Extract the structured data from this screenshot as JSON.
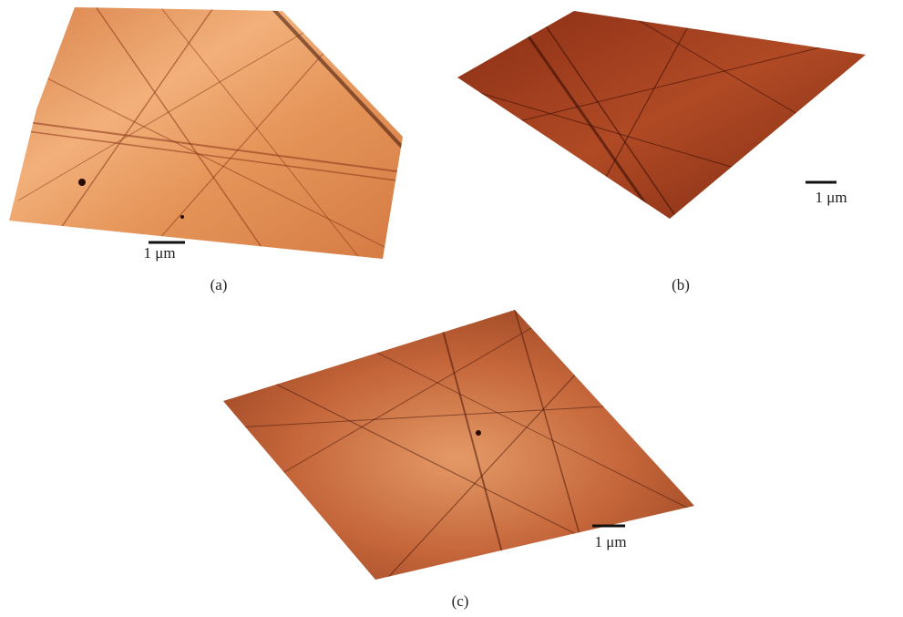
{
  "panels": [
    {
      "scale_bar": "1 μm",
      "caption": "(a)"
    },
    {
      "scale_bar": "1 μm",
      "caption": "(b)"
    },
    {
      "scale_bar": "1 μm",
      "caption": "(c)"
    }
  ]
}
